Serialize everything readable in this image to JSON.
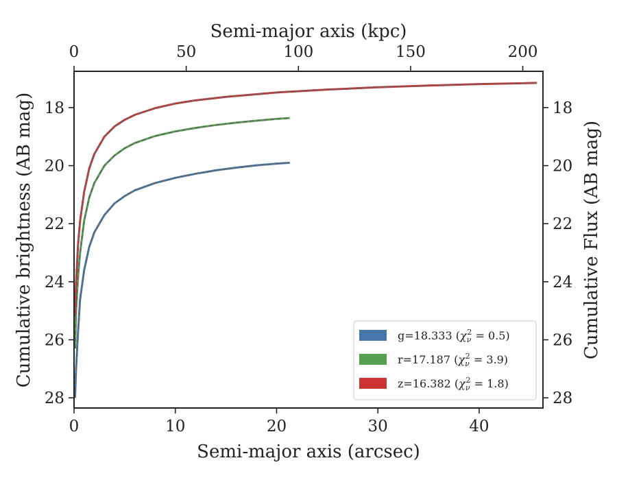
{
  "chart_data": {
    "type": "line",
    "xlabel": "Semi-major axis (arcsec)",
    "x2label": "Semi-major axis (kpc)",
    "ylabel": "Cumulative brightness (AB mag)",
    "y2label": "Cumulative Flux (AB mag)",
    "xlim": [
      0,
      46.3
    ],
    "x2lim": [
      0,
      209
    ],
    "ylim": [
      28.35,
      16.75
    ],
    "y_inverted": true,
    "xticks": [
      0,
      10,
      20,
      30,
      40
    ],
    "x2ticks": [
      0,
      50,
      100,
      150,
      200
    ],
    "yticks": [
      18,
      20,
      22,
      24,
      26,
      28
    ],
    "grid": false,
    "legend_position": "lower-right",
    "series": [
      {
        "name": "g=18.333",
        "chi_label": "g=18.333 (χ²_ν = 0.5)",
        "label_prefix": "g=18.333 (",
        "chi_symbol": "χ",
        "chi_sub": "ν",
        "chi_sup": "2",
        "chi_value": " = 0.5)",
        "color": "#4477aa",
        "x": [
          0.1,
          0.2,
          0.4,
          0.6,
          1.0,
          1.5,
          2.0,
          3.0,
          4.0,
          5.0,
          6.0,
          8.0,
          10.0,
          12.0,
          14.0,
          16.0,
          18.0,
          20.0,
          21.3
        ],
        "y": [
          28.0,
          27.0,
          25.7,
          24.6,
          23.6,
          22.8,
          22.3,
          21.7,
          21.3,
          21.05,
          20.85,
          20.6,
          20.42,
          20.28,
          20.16,
          20.07,
          19.99,
          19.93,
          19.9
        ]
      },
      {
        "name": "r=17.187",
        "chi_label": "r=17.187 (χ²_ν = 3.9)",
        "label_prefix": "r=17.187 (",
        "chi_symbol": "χ",
        "chi_sub": "ν",
        "chi_sup": "2",
        "chi_value": " = 3.9)",
        "color": "#55a14f",
        "x": [
          0.1,
          0.2,
          0.4,
          0.6,
          1.0,
          1.5,
          2.0,
          3.0,
          4.0,
          5.0,
          6.0,
          8.0,
          10.0,
          12.0,
          14.0,
          16.0,
          18.0,
          20.0,
          21.3
        ],
        "y": [
          26.3,
          25.0,
          23.8,
          23.0,
          21.9,
          21.1,
          20.6,
          20.0,
          19.65,
          19.4,
          19.22,
          18.98,
          18.82,
          18.7,
          18.6,
          18.52,
          18.45,
          18.39,
          18.36
        ]
      },
      {
        "name": "z=16.382",
        "chi_label": "z=16.382 (χ²_ν = 1.8)",
        "label_prefix": "z=16.382 (",
        "chi_symbol": "χ",
        "chi_sub": "ν",
        "chi_sup": "2",
        "chi_value": " = 1.8)",
        "color": "#cc3333",
        "x": [
          0.1,
          0.2,
          0.4,
          0.6,
          1.0,
          1.5,
          2.0,
          3.0,
          4.0,
          5.0,
          6.0,
          8.0,
          10.0,
          12.0,
          15.0,
          20.0,
          25.0,
          30.0,
          35.0,
          40.0,
          45.7
        ],
        "y": [
          25.2,
          24.0,
          22.7,
          21.9,
          20.9,
          20.1,
          19.6,
          19.0,
          18.65,
          18.42,
          18.25,
          18.02,
          17.86,
          17.75,
          17.63,
          17.48,
          17.38,
          17.3,
          17.24,
          17.19,
          17.15
        ]
      }
    ]
  }
}
